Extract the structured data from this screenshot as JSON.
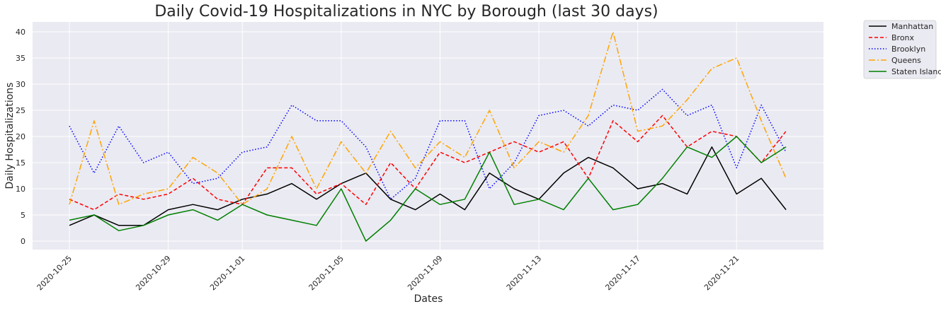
{
  "chart_data": {
    "type": "line",
    "title": "Daily Covid-19 Hospitalizations in NYC by Borough (last 30 days)",
    "xlabel": "Dates",
    "ylabel": "Daily Hospitalizations",
    "x": [
      "2020-10-25",
      "2020-10-26",
      "2020-10-27",
      "2020-10-28",
      "2020-10-29",
      "2020-10-30",
      "2020-10-31",
      "2020-11-01",
      "2020-11-02",
      "2020-11-03",
      "2020-11-04",
      "2020-11-05",
      "2020-11-06",
      "2020-11-07",
      "2020-11-08",
      "2020-11-09",
      "2020-11-10",
      "2020-11-11",
      "2020-11-12",
      "2020-11-13",
      "2020-11-14",
      "2020-11-15",
      "2020-11-16",
      "2020-11-17",
      "2020-11-18",
      "2020-11-19",
      "2020-11-20",
      "2020-11-21",
      "2020-11-22",
      "2020-11-23"
    ],
    "xticks": [
      "2020-10-25",
      "2020-10-29",
      "2020-11-01",
      "2020-11-05",
      "2020-11-09",
      "2020-11-13",
      "2020-11-17",
      "2020-11-21"
    ],
    "yticks": [
      0,
      5,
      10,
      15,
      20,
      25,
      30,
      35,
      40
    ],
    "ylim": [
      -2,
      42
    ],
    "grid": true,
    "legend_position": "outside-top-right",
    "series": [
      {
        "name": "Manhattan",
        "color": "#000000",
        "dash": "solid",
        "values": [
          3,
          5,
          3,
          3,
          6,
          7,
          6,
          8,
          9,
          11,
          8,
          11,
          13,
          8,
          6,
          9,
          6,
          13,
          10,
          8,
          13,
          16,
          14,
          10,
          11,
          9,
          18,
          9,
          12,
          6
        ]
      },
      {
        "name": "Bronx",
        "color": "#ff0000",
        "dash": "dashed",
        "values": [
          8,
          6,
          9,
          8,
          9,
          12,
          8,
          7,
          14,
          14,
          9,
          11,
          7,
          15,
          10,
          17,
          15,
          17,
          19,
          17,
          19,
          12,
          23,
          19,
          24,
          18,
          21,
          20,
          15,
          21
        ]
      },
      {
        "name": "Brooklyn",
        "color": "#0000ff",
        "dash": "dotted",
        "values": [
          22,
          13,
          22,
          15,
          17,
          11,
          12,
          17,
          18,
          26,
          23,
          23,
          18,
          8,
          12,
          23,
          23,
          10,
          15,
          24,
          25,
          22,
          26,
          25,
          29,
          24,
          26,
          14,
          26,
          17
        ]
      },
      {
        "name": "Queens",
        "color": "#ffa500",
        "dash": "dashdot",
        "values": [
          7,
          23,
          7,
          9,
          10,
          16,
          13,
          7,
          10,
          20,
          10,
          19,
          13,
          21,
          14,
          19,
          16,
          25,
          14,
          19,
          17,
          24,
          40,
          21,
          22,
          27,
          33,
          35,
          23,
          12
        ]
      },
      {
        "name": "Staten Island",
        "color": "#008000",
        "dash": "solid",
        "values": [
          4,
          5,
          2,
          3,
          5,
          6,
          4,
          7,
          5,
          4,
          3,
          10,
          0,
          4,
          10,
          7,
          8,
          17,
          7,
          8,
          6,
          12,
          6,
          7,
          12,
          18,
          16,
          20,
          15,
          18
        ]
      }
    ]
  }
}
